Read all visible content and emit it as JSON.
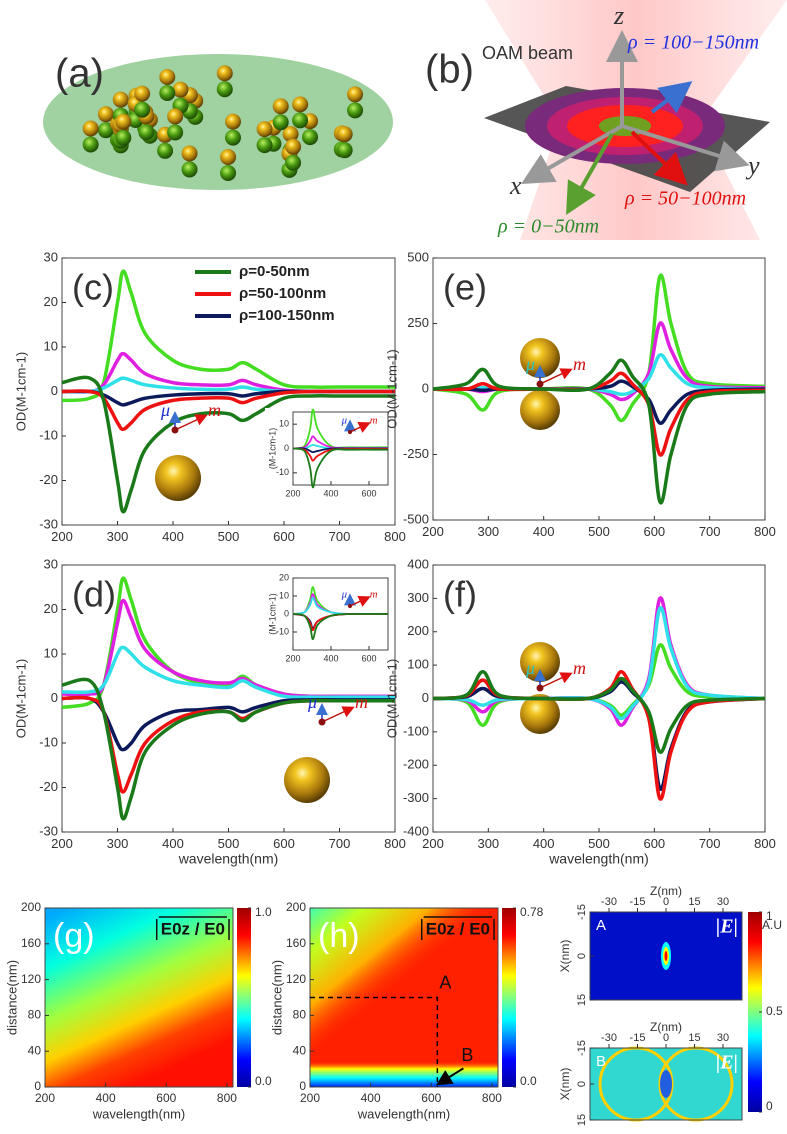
{
  "panels": {
    "a": {
      "label": "(a)"
    },
    "b": {
      "label": "(b)",
      "beam": "OAM beam",
      "z": "z",
      "x": "x",
      "y": "y",
      "ring_outer": "ρ = 100−150nm",
      "ring_middle": "ρ = 50−100nm",
      "ring_inner": "ρ = 0−50nm"
    }
  },
  "chart_data": [
    {
      "type": "line",
      "label": "(c)",
      "ylabel": "OD(M-1cm-1)",
      "legend": "upper right",
      "particle": "sphere",
      "dipole": {
        "mu": "μ⃗",
        "m": "m⃗"
      },
      "x": [
        200,
        250,
        275,
        300,
        310,
        325,
        350,
        400,
        450,
        500,
        525,
        550,
        600,
        650,
        700,
        800
      ],
      "xlim": [
        200,
        800
      ],
      "ylim": [
        -30,
        30
      ],
      "xticks": [
        200,
        300,
        400,
        500,
        600,
        700,
        800
      ],
      "yticks": [
        -30,
        -20,
        -10,
        0,
        10,
        20,
        30
      ],
      "series": [
        {
          "color": "#44dd22",
          "values": [
            -2,
            -1.5,
            2,
            20,
            27,
            22,
            13,
            7,
            5,
            5,
            6.5,
            5,
            1.5,
            1,
            1,
            1
          ]
        },
        {
          "color": "#e020e0",
          "values": [
            0,
            0,
            1.5,
            7,
            8.5,
            7,
            4,
            2,
            1.5,
            1.5,
            2.5,
            1.5,
            0.3,
            0,
            0,
            0
          ]
        },
        {
          "color": "#30e0e8",
          "values": [
            0,
            0,
            0.8,
            2.5,
            3,
            2.5,
            1.5,
            0.8,
            0.5,
            0.5,
            1,
            0.5,
            0,
            0,
            0,
            0
          ]
        },
        {
          "name": "ρ=100-150nm",
          "color": "#0c1a5c",
          "values": [
            0,
            0,
            -0.8,
            -2.5,
            -3,
            -2.5,
            -1.5,
            -0.8,
            -0.5,
            -0.5,
            -1,
            -0.5,
            0,
            0,
            0,
            0
          ]
        },
        {
          "name": "ρ=50-100nm",
          "color": "#ee1111",
          "values": [
            0,
            0,
            -1.5,
            -7,
            -8.5,
            -7,
            -4,
            -2,
            -1.5,
            -1.5,
            -2.5,
            -1.5,
            -0.3,
            0,
            0,
            0
          ]
        },
        {
          "name": "ρ=0-50nm",
          "color": "#1a7a1a",
          "values": [
            2,
            3,
            -2,
            -20,
            -27,
            -22,
            -13,
            -7,
            -5,
            -5,
            -6.5,
            -5,
            -1.5,
            -1,
            -1,
            -1
          ]
        }
      ]
    },
    {
      "type": "line",
      "ylabel": "(M-1cm-1)",
      "dipole": {
        "mu": "μ⃗",
        "m": "m⃗"
      },
      "x": [
        200,
        260,
        290,
        305,
        330,
        400,
        500,
        700
      ],
      "xlim": [
        200,
        700
      ],
      "ylim": [
        -15,
        15
      ],
      "xticks": [
        200,
        400,
        600
      ],
      "yticks": [
        -10,
        0,
        10
      ],
      "series": [
        {
          "color": "#44dd22",
          "values": [
            0,
            1,
            8,
            16,
            8,
            1,
            0.5,
            0.5
          ]
        },
        {
          "color": "#e020e0",
          "values": [
            0,
            0.5,
            3,
            5,
            3,
            0.5,
            0.2,
            0.2
          ]
        },
        {
          "color": "#30e0e8",
          "values": [
            0,
            0,
            1,
            1.5,
            1,
            0,
            0,
            0
          ]
        },
        {
          "color": "#0c1a5c",
          "values": [
            0,
            0,
            -1,
            -1.5,
            -1,
            0,
            0,
            0
          ]
        },
        {
          "color": "#ee1111",
          "values": [
            0,
            -0.5,
            -3,
            -5,
            -3,
            -0.5,
            -0.2,
            -0.2
          ]
        },
        {
          "color": "#1a7a1a",
          "values": [
            0,
            -1,
            -8,
            -16,
            -8,
            -1,
            -0.5,
            -0.5
          ]
        }
      ]
    },
    {
      "type": "line",
      "label": "(e)",
      "ylabel": "OD(M-1cm-1)",
      "particle": "dimer",
      "dipole": {
        "mu": "μ⃗",
        "m": "m⃗"
      },
      "x": [
        200,
        260,
        290,
        320,
        400,
        480,
        520,
        540,
        560,
        590,
        610,
        630,
        660,
        700,
        800
      ],
      "xlim": [
        200,
        800
      ],
      "ylim": [
        -500,
        500
      ],
      "xticks": [
        200,
        300,
        400,
        500,
        600,
        700,
        800
      ],
      "yticks": [
        -500,
        -250,
        0,
        250,
        500
      ],
      "series": [
        {
          "color": "#44dd22",
          "values": [
            0,
            -20,
            -80,
            -10,
            0,
            0,
            -60,
            -120,
            -60,
            60,
            430,
            250,
            60,
            20,
            10
          ]
        },
        {
          "color": "#e020e0",
          "values": [
            0,
            0,
            -10,
            0,
            0,
            0,
            -20,
            -40,
            -20,
            60,
            250,
            150,
            40,
            10,
            5
          ]
        },
        {
          "color": "#30e0e8",
          "values": [
            0,
            0,
            5,
            0,
            0,
            0,
            -10,
            -20,
            -10,
            40,
            130,
            80,
            20,
            5,
            0
          ]
        },
        {
          "color": "#0c1a5c",
          "values": [
            0,
            0,
            -5,
            0,
            0,
            0,
            10,
            30,
            10,
            -40,
            -130,
            -80,
            -20,
            -5,
            0
          ]
        },
        {
          "color": "#ee1111",
          "values": [
            0,
            0,
            20,
            0,
            0,
            0,
            30,
            60,
            20,
            -60,
            -250,
            -150,
            -40,
            -10,
            -5
          ]
        },
        {
          "color": "#1a7a1a",
          "values": [
            0,
            20,
            75,
            10,
            0,
            0,
            60,
            110,
            50,
            -60,
            -430,
            -250,
            -60,
            -20,
            -10
          ]
        }
      ]
    },
    {
      "type": "line",
      "label": "(d)",
      "ylabel": "OD(M-1cm-1)",
      "xlabel": "wavelength(nm)",
      "particle": "sphere",
      "dipole": {
        "mu": "μ⃗",
        "m": "m⃗"
      },
      "x": [
        200,
        250,
        275,
        300,
        310,
        325,
        350,
        400,
        450,
        500,
        525,
        550,
        600,
        650,
        700,
        800
      ],
      "xlim": [
        200,
        800
      ],
      "ylim": [
        -30,
        30
      ],
      "xticks": [
        200,
        300,
        400,
        500,
        600,
        700,
        800
      ],
      "yticks": [
        -30,
        -20,
        -10,
        0,
        10,
        20,
        30
      ],
      "series": [
        {
          "color": "#44dd22",
          "values": [
            -2,
            -1,
            3,
            20,
            27,
            22,
            13,
            6,
            3.5,
            3,
            5,
            3,
            1,
            0.5,
            0.5,
            0.5
          ]
        },
        {
          "color": "#e020e0",
          "values": [
            1,
            1,
            3,
            17,
            22,
            18,
            11,
            6,
            4,
            3.5,
            4.5,
            3,
            1,
            0.5,
            0.5,
            0.5
          ]
        },
        {
          "color": "#30e0e8",
          "values": [
            1.5,
            1.5,
            3,
            10,
            11.5,
            10,
            7,
            4,
            3,
            2.5,
            4,
            2.5,
            0.5,
            0.3,
            0.3,
            0.3
          ]
        },
        {
          "color": "#0c1a5c",
          "values": [
            0,
            0,
            -3,
            -10,
            -11.5,
            -10,
            -6,
            -3,
            -2.5,
            -2,
            -3,
            -2,
            -0.5,
            -0.3,
            -0.3,
            -0.3
          ]
        },
        {
          "color": "#ee1111",
          "values": [
            0,
            0,
            -3,
            -17,
            -21,
            -17,
            -10,
            -5,
            -3,
            -3,
            -4.5,
            -3,
            -1,
            -0.5,
            -0.5,
            -0.5
          ]
        },
        {
          "color": "#1a7a1a",
          "values": [
            3,
            4,
            -3,
            -20,
            -27,
            -22,
            -12,
            -6,
            -3.5,
            -3,
            -5,
            -3,
            -1,
            -0.5,
            -0.5,
            -0.5
          ]
        }
      ]
    },
    {
      "type": "line",
      "ylabel": "(M-1cm-1)",
      "dipole": {
        "mu": "μ⃗",
        "m": "m⃗"
      },
      "x": [
        200,
        260,
        290,
        305,
        330,
        400,
        500,
        700
      ],
      "xlim": [
        200,
        700
      ],
      "ylim": [
        -20,
        20
      ],
      "xticks": [
        200,
        400,
        600
      ],
      "yticks": [
        -10,
        0,
        10,
        20
      ],
      "series": [
        {
          "color": "#44dd22",
          "values": [
            0,
            1,
            8,
            15,
            7,
            1,
            0,
            0
          ]
        },
        {
          "color": "#e020e0",
          "values": [
            0,
            1,
            6,
            11,
            5,
            1,
            0,
            0
          ]
        },
        {
          "color": "#30e0e8",
          "values": [
            0,
            1,
            5,
            9,
            4,
            1,
            0,
            0
          ]
        },
        {
          "color": "#0c1a5c",
          "values": [
            0,
            -1,
            -4,
            -8,
            -4,
            -1,
            0,
            0
          ]
        },
        {
          "color": "#ee1111",
          "values": [
            0,
            -1,
            -5,
            -9,
            -4,
            -1,
            0,
            0
          ]
        },
        {
          "color": "#1a7a1a",
          "values": [
            0,
            -1,
            -7,
            -14,
            -6,
            -1,
            0,
            0
          ]
        }
      ]
    },
    {
      "type": "line",
      "label": "(f)",
      "ylabel": "OD(M-1cm-1)",
      "xlabel": "wavelength(nm)",
      "particle": "dimer",
      "dipole": {
        "mu": "μ⃗",
        "m": "m⃗"
      },
      "x": [
        200,
        260,
        290,
        320,
        400,
        480,
        520,
        540,
        560,
        590,
        610,
        630,
        660,
        700,
        800
      ],
      "xlim": [
        200,
        800
      ],
      "ylim": [
        -400,
        400
      ],
      "xticks": [
        200,
        300,
        400,
        500,
        600,
        700,
        800
      ],
      "yticks": [
        -400,
        -300,
        -200,
        -100,
        0,
        100,
        200,
        300,
        400
      ],
      "series": [
        {
          "color": "#44dd22",
          "values": [
            0,
            -10,
            -80,
            -10,
            0,
            0,
            -20,
            -50,
            -20,
            40,
            160,
            90,
            20,
            5,
            0
          ]
        },
        {
          "color": "#e020e0",
          "values": [
            0,
            -5,
            -40,
            -5,
            0,
            0,
            -30,
            -80,
            -30,
            60,
            300,
            160,
            40,
            10,
            0
          ]
        },
        {
          "color": "#30e0e8",
          "values": [
            0,
            -3,
            -20,
            -3,
            0,
            0,
            -25,
            -60,
            -25,
            50,
            270,
            150,
            35,
            10,
            0
          ]
        },
        {
          "color": "#0c1a5c",
          "values": [
            0,
            5,
            30,
            5,
            0,
            0,
            20,
            50,
            20,
            -50,
            -270,
            -150,
            -35,
            -10,
            0
          ]
        },
        {
          "color": "#ee1111",
          "values": [
            0,
            8,
            55,
            8,
            0,
            0,
            30,
            80,
            30,
            -60,
            -300,
            -160,
            -40,
            -10,
            0
          ]
        },
        {
          "color": "#1a7a1a",
          "values": [
            0,
            10,
            80,
            10,
            0,
            0,
            25,
            60,
            25,
            -40,
            -160,
            -90,
            -20,
            -5,
            0
          ]
        }
      ]
    },
    {
      "type": "heatmap",
      "label": "(g)",
      "title": "E0z / E0",
      "xlabel": "wavelength(nm)",
      "ylabel": "distance(nm)",
      "xlim": [
        200,
        820
      ],
      "ylim": [
        0,
        200
      ],
      "xticks": [
        200,
        400,
        600,
        800
      ],
      "yticks": [
        0,
        40,
        80,
        120,
        160,
        200
      ],
      "clim": [
        0,
        1
      ],
      "cticks": [
        {
          "value": 0,
          "label": "0.0"
        },
        {
          "value": 1,
          "label": "1.0"
        }
      ]
    },
    {
      "type": "heatmap",
      "label": "(h)",
      "title": "E0z / E0",
      "xlabel": "wavelength(nm)",
      "ylabel": "distance(nm)",
      "xlim": [
        200,
        820
      ],
      "ylim": [
        0,
        200
      ],
      "xticks": [
        200,
        400,
        600,
        800
      ],
      "yticks": [
        0,
        40,
        80,
        120,
        160,
        200
      ],
      "clim": [
        0,
        0.78
      ],
      "cticks": [
        {
          "value": 0,
          "label": "0.0"
        },
        0.78
      ],
      "points": [
        {
          "label": "A",
          "x": 620,
          "y": 100
        },
        {
          "label": "B",
          "x": 620,
          "y": 3
        }
      ]
    },
    {
      "type": "field_map",
      "label": "A",
      "quantity": "|E|",
      "xlabel": "Z(nm)",
      "ylabel": "X(nm)",
      "xlim": [
        -40,
        40
      ],
      "ylim": [
        15,
        -15
      ],
      "xticks": [
        -30,
        -15,
        0,
        15,
        30
      ],
      "yticks": [
        -15,
        0,
        15
      ],
      "clim": [
        0,
        1
      ],
      "cticks": [
        0,
        0.5,
        1
      ],
      "cunit": "A.U"
    },
    {
      "type": "field_map",
      "label": "B",
      "quantity": "|E|",
      "xlabel": "Z(nm)",
      "ylabel": "X(nm)",
      "xlim": [
        -40,
        40
      ],
      "ylim": [
        15,
        -15
      ],
      "xticks": [
        -30,
        -15,
        0,
        15,
        30
      ],
      "yticks": [
        -15,
        0,
        15
      ]
    }
  ]
}
